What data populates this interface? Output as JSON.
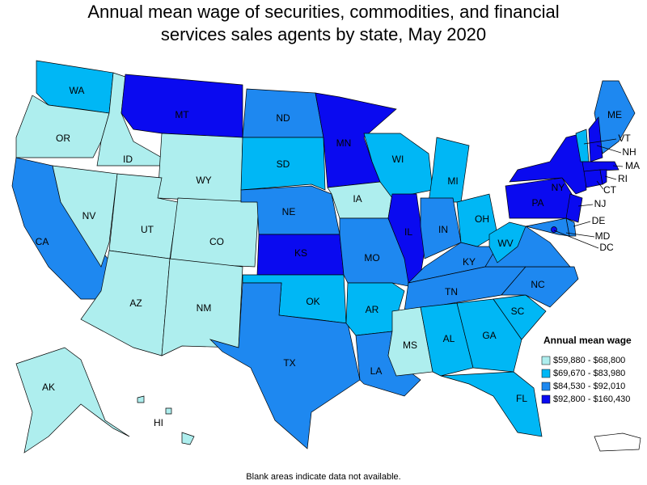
{
  "title_lines": [
    "Annual mean wage of securities, commodities, and financial",
    "services sales agents by state, May 2020"
  ],
  "legend": {
    "title": "Annual mean wage",
    "items": [
      {
        "label": "$59,880 - $68,800",
        "color": "#aeeeee"
      },
      {
        "label": "$69,670 - $83,980",
        "color": "#00b7f5"
      },
      {
        "label": "$84,530 - $92,010",
        "color": "#1e88f0"
      },
      {
        "label": "$92,800 - $160,430",
        "color": "#0a0af0"
      }
    ]
  },
  "states": [
    {
      "label": "WA",
      "color": "#00b7f5"
    },
    {
      "label": "OR",
      "color": "#aeeeee"
    },
    {
      "label": "CA",
      "color": "#1e88f0"
    },
    {
      "label": "NV",
      "color": "#aeeeee"
    },
    {
      "label": "ID",
      "color": "#aeeeee"
    },
    {
      "label": "MT",
      "color": "#0a0af0"
    },
    {
      "label": "WY",
      "color": "#aeeeee"
    },
    {
      "label": "UT",
      "color": "#aeeeee"
    },
    {
      "label": "CO",
      "color": "#aeeeee"
    },
    {
      "label": "AZ",
      "color": "#aeeeee"
    },
    {
      "label": "NM",
      "color": "#aeeeee"
    },
    {
      "label": "ND",
      "color": "#1e88f0"
    },
    {
      "label": "SD",
      "color": "#00b7f5"
    },
    {
      "label": "NE",
      "color": "#1e88f0"
    },
    {
      "label": "KS",
      "color": "#0a0af0"
    },
    {
      "label": "OK",
      "color": "#00b7f5"
    },
    {
      "label": "TX",
      "color": "#1e88f0"
    },
    {
      "label": "MN",
      "color": "#0a0af0"
    },
    {
      "label": "IA",
      "color": "#aeeeee"
    },
    {
      "label": "MO",
      "color": "#1e88f0"
    },
    {
      "label": "AR",
      "color": "#00b7f5"
    },
    {
      "label": "LA",
      "color": "#1e88f0"
    },
    {
      "label": "WI",
      "color": "#00b7f5"
    },
    {
      "label": "IL",
      "color": "#0a0af0"
    },
    {
      "label": "MI",
      "color": "#00b7f5"
    },
    {
      "label": "IN",
      "color": "#1e88f0"
    },
    {
      "label": "OH",
      "color": "#00b7f5"
    },
    {
      "label": "KY",
      "color": "#1e88f0"
    },
    {
      "label": "TN",
      "color": "#1e88f0"
    },
    {
      "label": "MS",
      "color": "#aeeeee"
    },
    {
      "label": "AL",
      "color": "#00b7f5"
    },
    {
      "label": "GA",
      "color": "#00b7f5"
    },
    {
      "label": "SC",
      "color": "#00b7f5"
    },
    {
      "label": "FL",
      "color": "#00b7f5"
    },
    {
      "label": "NC",
      "color": "#1e88f0"
    },
    {
      "label": null,
      "color": "#1e88f0"
    },
    {
      "label": "WV",
      "color": "#00b7f5"
    },
    {
      "label": "PA",
      "color": "#0a0af0"
    },
    {
      "label": "NY",
      "color": "#0a0af0"
    },
    {
      "label": "ME",
      "color": "#1e88f0"
    },
    {
      "label": "VT",
      "color": "#00b7f5"
    },
    {
      "label": "NH",
      "color": "#0a0af0"
    },
    {
      "label": "MA",
      "color": "#0a0af0"
    },
    {
      "label": "CT",
      "color": "#0a0af0"
    },
    {
      "label": "RI",
      "color": "#0a0af0"
    },
    {
      "label": "NJ",
      "color": "#0a0af0"
    },
    {
      "label": "DE",
      "color": "#1e88f0"
    },
    {
      "label": "MD",
      "color": "#1e88f0"
    },
    {
      "label": "DC",
      "color": "#0a0af0"
    },
    {
      "label": "AK",
      "color": "#aeeeee"
    },
    {
      "label": "HI",
      "color": "#aeeeee"
    }
  ],
  "footnote": "Blank areas indicate data not available."
}
